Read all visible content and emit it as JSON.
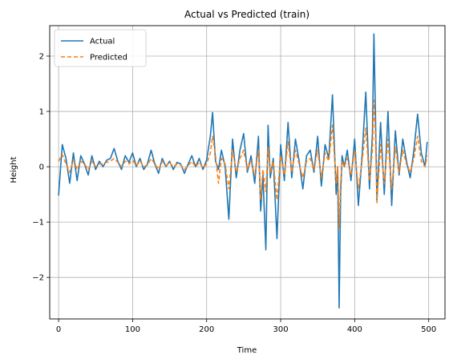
{
  "chart_data": {
    "type": "line",
    "title": "Actual vs Predicted (train)",
    "xlabel": "Time",
    "ylabel": "Height",
    "xlim": [
      -12,
      522
    ],
    "ylim": [
      -2.75,
      2.55
    ],
    "xticks": [
      0,
      100,
      200,
      300,
      400,
      500
    ],
    "xtick_labels": [
      "0",
      "100",
      "200",
      "300",
      "400",
      "500"
    ],
    "yticks": [
      -2,
      -1,
      0,
      1,
      2
    ],
    "ytick_labels": [
      "−2",
      "−1",
      "0",
      "1",
      "2"
    ],
    "grid": true,
    "legend_position": "top-left",
    "series": [
      {
        "name": "Actual",
        "color": "#1f77b4",
        "style": "solid",
        "x": [
          0,
          5,
          10,
          15,
          20,
          25,
          30,
          35,
          40,
          45,
          50,
          55,
          60,
          65,
          70,
          75,
          80,
          85,
          90,
          95,
          100,
          105,
          110,
          115,
          120,
          125,
          130,
          135,
          140,
          145,
          150,
          155,
          160,
          165,
          170,
          175,
          180,
          185,
          190,
          195,
          200,
          205,
          208,
          212,
          216,
          220,
          225,
          230,
          235,
          240,
          245,
          250,
          255,
          260,
          265,
          270,
          273,
          276,
          280,
          283,
          286,
          290,
          295,
          300,
          305,
          310,
          315,
          320,
          325,
          330,
          335,
          340,
          345,
          350,
          355,
          360,
          365,
          370,
          375,
          377,
          379,
          381,
          383,
          386,
          390,
          395,
          400,
          405,
          410,
          415,
          420,
          424,
          426,
          428,
          430,
          435,
          440,
          445,
          450,
          455,
          460,
          465,
          470,
          475,
          480,
          485,
          490,
          495,
          498
        ],
        "y": [
          -0.52,
          0.4,
          0.15,
          -0.3,
          0.25,
          -0.25,
          0.2,
          0.05,
          -0.15,
          0.2,
          -0.05,
          0.1,
          0.0,
          0.12,
          0.15,
          0.33,
          0.1,
          -0.05,
          0.2,
          0.08,
          0.25,
          0.0,
          0.15,
          -0.05,
          0.05,
          0.3,
          0.05,
          -0.12,
          0.15,
          0.0,
          0.1,
          -0.05,
          0.08,
          0.05,
          -0.12,
          0.05,
          0.2,
          0.0,
          0.15,
          -0.05,
          0.12,
          0.55,
          0.98,
          0.1,
          -0.05,
          0.3,
          0.0,
          -0.95,
          0.5,
          -0.2,
          0.3,
          0.6,
          -0.1,
          0.2,
          -0.3,
          0.55,
          -0.8,
          -0.15,
          -1.5,
          0.75,
          -0.2,
          0.15,
          -1.3,
          0.4,
          -0.25,
          0.8,
          -0.2,
          0.5,
          0.1,
          -0.4,
          0.2,
          0.3,
          -0.1,
          0.55,
          -0.35,
          0.4,
          0.15,
          1.3,
          -0.5,
          0.0,
          -2.55,
          -0.5,
          0.2,
          0.0,
          0.3,
          -0.25,
          0.5,
          -0.7,
          0.2,
          1.35,
          -0.4,
          0.6,
          2.4,
          1.0,
          -0.6,
          0.8,
          -0.5,
          1.0,
          -0.7,
          0.65,
          -0.15,
          0.5,
          0.1,
          -0.2,
          0.3,
          0.95,
          0.25,
          0.0,
          0.45
        ]
      },
      {
        "name": "Predicted",
        "color": "#ff7f0e",
        "style": "dashed",
        "x": [
          0,
          5,
          10,
          15,
          20,
          25,
          30,
          35,
          40,
          45,
          50,
          55,
          60,
          65,
          70,
          75,
          80,
          85,
          90,
          95,
          100,
          105,
          110,
          115,
          120,
          125,
          130,
          135,
          140,
          145,
          150,
          155,
          160,
          165,
          170,
          175,
          180,
          185,
          190,
          195,
          200,
          205,
          208,
          212,
          216,
          220,
          225,
          230,
          235,
          240,
          245,
          250,
          255,
          260,
          265,
          270,
          273,
          276,
          280,
          283,
          286,
          290,
          295,
          300,
          305,
          310,
          315,
          320,
          325,
          330,
          335,
          340,
          345,
          350,
          355,
          360,
          365,
          370,
          375,
          377,
          379,
          381,
          383,
          386,
          390,
          395,
          400,
          405,
          410,
          415,
          420,
          424,
          426,
          428,
          430,
          435,
          440,
          445,
          450,
          455,
          460,
          465,
          470,
          475,
          480,
          485,
          490,
          495,
          498
        ],
        "y": [
          0.1,
          0.22,
          0.05,
          -0.1,
          0.12,
          -0.05,
          0.1,
          0.05,
          -0.05,
          0.1,
          0.0,
          0.05,
          0.05,
          0.08,
          0.1,
          0.15,
          0.08,
          0.0,
          0.1,
          0.05,
          0.12,
          0.02,
          0.1,
          0.0,
          0.03,
          0.15,
          0.05,
          -0.05,
          0.1,
          0.02,
          0.08,
          0.0,
          0.05,
          0.03,
          -0.05,
          0.02,
          0.1,
          0.0,
          0.08,
          -0.02,
          0.05,
          0.25,
          0.55,
          0.2,
          -0.3,
          0.15,
          0.05,
          -0.4,
          0.3,
          -0.1,
          0.15,
          0.3,
          -0.05,
          0.1,
          -0.15,
          0.3,
          -0.6,
          -0.05,
          -0.45,
          0.35,
          -0.1,
          0.1,
          -0.6,
          0.2,
          -0.15,
          0.45,
          -0.1,
          0.3,
          0.05,
          -0.2,
          0.1,
          0.15,
          -0.05,
          0.3,
          -0.2,
          0.25,
          0.1,
          0.75,
          -0.3,
          0.0,
          -1.1,
          -0.3,
          0.1,
          0.0,
          0.15,
          -0.15,
          0.3,
          -0.4,
          0.1,
          0.7,
          -0.25,
          0.3,
          1.2,
          0.6,
          -0.65,
          0.4,
          -0.3,
          0.5,
          -0.4,
          0.35,
          -0.1,
          0.3,
          0.05,
          -0.1,
          0.15,
          0.55,
          0.1,
          0.0,
          0.2
        ]
      }
    ]
  }
}
